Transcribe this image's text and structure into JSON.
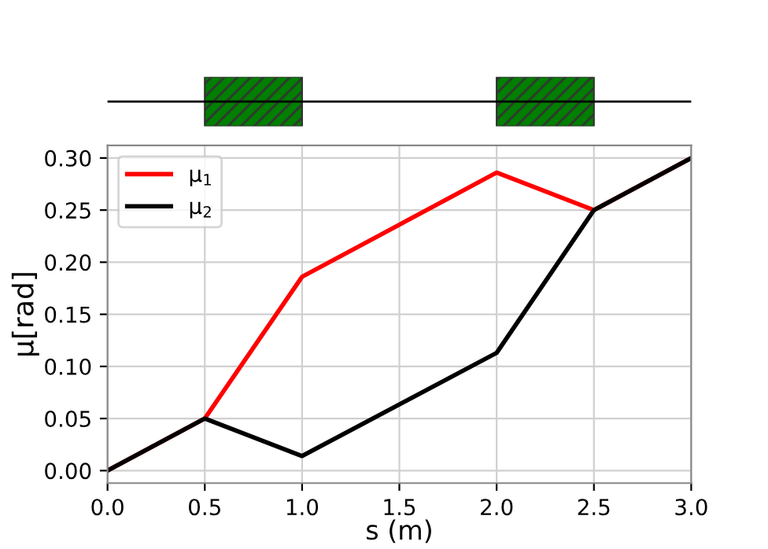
{
  "chart_data": {
    "type": "line",
    "xlabel": "s (m)",
    "ylabel": "μ[rad]",
    "x": [
      0,
      0.5,
      1.0,
      2.0,
      2.5,
      3.0
    ],
    "series": [
      {
        "name": "μ$_{1}$",
        "color": "#ff0000",
        "values": [
          0,
          0.05,
          0.186,
          0.286,
          0.25,
          0.3
        ]
      },
      {
        "name": "μ$_{2}$",
        "color": "#000000",
        "values": [
          0,
          0.05,
          0.014,
          0.113,
          0.25,
          0.3
        ]
      }
    ],
    "xlim": [
      0,
      3
    ],
    "ylim": [
      -0.012,
      0.312
    ],
    "xticks": [
      {
        "value": 0,
        "label": "0.0"
      },
      {
        "value": 0.5,
        "label": "0.5"
      },
      {
        "value": 1,
        "label": "1.0"
      },
      {
        "value": 1.5,
        "label": "1.5"
      },
      {
        "value": 2,
        "label": "2.0"
      },
      {
        "value": 2.5,
        "label": "2.5"
      },
      {
        "value": 3,
        "label": "3.0"
      }
    ],
    "yticks": [
      {
        "value": 0,
        "label": "0.00"
      },
      {
        "value": 0.05,
        "label": "0.05"
      },
      {
        "value": 0.1,
        "label": "0.10"
      },
      {
        "value": 0.15,
        "label": "0.15"
      },
      {
        "value": 0.2,
        "label": "0.20"
      },
      {
        "value": 0.25,
        "label": "0.25"
      },
      {
        "value": 0.3,
        "label": "0.30"
      }
    ],
    "grid": true,
    "legend": "top left",
    "marker": "none",
    "line_style": "solid"
  }
}
